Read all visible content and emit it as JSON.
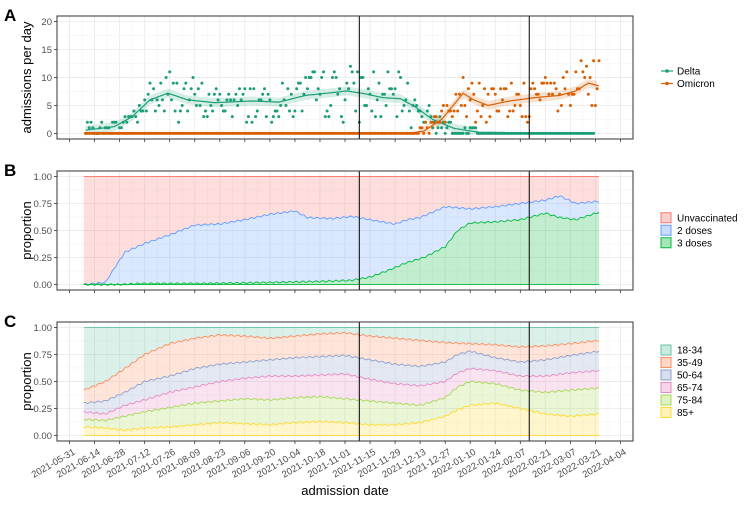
{
  "figure": {
    "xlabel": "admission date",
    "x_ticks": [
      "2021-05-31",
      "2021-06-14",
      "2021-06-28",
      "2021-07-12",
      "2021-07-26",
      "2021-08-09",
      "2021-08-23",
      "2021-09-06",
      "2021-09-20",
      "2021-10-04",
      "2021-10-18",
      "2021-11-01",
      "2021-11-15",
      "2021-11-29",
      "2021-12-13",
      "2021-12-27",
      "2022-01-10",
      "2022-01-24",
      "2022-02-07",
      "2022-02-21",
      "2022-03-07",
      "2022-03-21",
      "2022-04-04"
    ],
    "x_range": [
      "2021-05-24",
      "2022-04-11"
    ],
    "vlines": [
      "2021-11-09",
      "2022-02-12"
    ]
  },
  "panels": [
    {
      "tag": "A",
      "ylabel": "admissions per day"
    },
    {
      "tag": "B",
      "ylabel": "proportion"
    },
    {
      "tag": "C",
      "ylabel": "proportion"
    }
  ],
  "chart_data": [
    {
      "type": "scatter",
      "tag": "A",
      "ylabel": "admissions per day",
      "ylim": [
        -1,
        21
      ],
      "y_ticks": [
        0,
        5,
        10,
        15,
        20
      ],
      "legend_position": "right",
      "series": [
        {
          "name": "Delta",
          "color": "#1b9e77",
          "date_range": [
            "2021-06-09",
            "2022-03-20"
          ],
          "smooth": [
            [
              "2021-06-09",
              0.6
            ],
            [
              "2021-06-25",
              1.2
            ],
            [
              "2021-07-05",
              3.0
            ],
            [
              "2021-07-15",
              6.0
            ],
            [
              "2021-07-25",
              7.2
            ],
            [
              "2021-08-05",
              6.0
            ],
            [
              "2021-08-20",
              5.5
            ],
            [
              "2021-09-10",
              5.8
            ],
            [
              "2021-09-25",
              5.6
            ],
            [
              "2021-10-10",
              6.8
            ],
            [
              "2021-10-25",
              7.3
            ],
            [
              "2021-11-02",
              7.6
            ],
            [
              "2021-11-12",
              7.1
            ],
            [
              "2021-11-22",
              6.4
            ],
            [
              "2021-12-02",
              6.2
            ],
            [
              "2021-12-10",
              4.8
            ],
            [
              "2021-12-20",
              2.5
            ],
            [
              "2022-01-01",
              0.9
            ],
            [
              "2022-01-15",
              0.2
            ],
            [
              "2022-03-20",
              0.0
            ]
          ]
        },
        {
          "name": "Omicron",
          "color": "#d95f02",
          "date_range": [
            "2021-06-09",
            "2022-03-23"
          ],
          "smooth": [
            [
              "2021-06-09",
              0.0
            ],
            [
              "2021-12-05",
              0.0
            ],
            [
              "2021-12-15",
              0.4
            ],
            [
              "2021-12-25",
              2.5
            ],
            [
              "2022-01-01",
              5.2
            ],
            [
              "2022-01-06",
              7.2
            ],
            [
              "2022-01-12",
              6.0
            ],
            [
              "2022-01-20",
              5.0
            ],
            [
              "2022-02-01",
              5.8
            ],
            [
              "2022-02-15",
              6.4
            ],
            [
              "2022-03-01",
              6.8
            ],
            [
              "2022-03-10",
              7.6
            ],
            [
              "2022-03-17",
              9.0
            ],
            [
              "2022-03-23",
              8.5
            ]
          ]
        }
      ]
    },
    {
      "type": "area",
      "tag": "B",
      "ylabel": "proportion",
      "ylim": [
        -0.05,
        1.05
      ],
      "y_ticks": [
        "0.00",
        "0.25",
        "0.50",
        "0.75",
        "1.00"
      ],
      "legend_position": "right",
      "date_range": [
        "2021-06-08",
        "2022-03-23"
      ],
      "series": [
        {
          "name": "Unvaccinated",
          "color": "#f8766d",
          "upper": [
            [
              "2021-06-08",
              1.0
            ],
            [
              "2022-03-23",
              1.0
            ]
          ]
        },
        {
          "name": "2 doses",
          "color": "#619cff",
          "upper": [
            [
              "2021-06-08",
              0.0
            ],
            [
              "2021-06-20",
              0.02
            ],
            [
              "2021-06-25",
              0.15
            ],
            [
              "2021-07-01",
              0.3
            ],
            [
              "2021-07-12",
              0.38
            ],
            [
              "2021-07-26",
              0.46
            ],
            [
              "2021-08-09",
              0.55
            ],
            [
              "2021-08-23",
              0.56
            ],
            [
              "2021-09-06",
              0.6
            ],
            [
              "2021-09-20",
              0.65
            ],
            [
              "2021-10-04",
              0.68
            ],
            [
              "2021-10-11",
              0.62
            ],
            [
              "2021-10-25",
              0.61
            ],
            [
              "2021-11-05",
              0.63
            ],
            [
              "2021-11-15",
              0.6
            ],
            [
              "2021-11-29",
              0.56
            ],
            [
              "2021-12-06",
              0.6
            ],
            [
              "2021-12-13",
              0.62
            ],
            [
              "2021-12-20",
              0.67
            ],
            [
              "2021-12-27",
              0.72
            ],
            [
              "2022-01-10",
              0.7
            ],
            [
              "2022-01-24",
              0.72
            ],
            [
              "2022-02-07",
              0.75
            ],
            [
              "2022-02-21",
              0.78
            ],
            [
              "2022-03-01",
              0.82
            ],
            [
              "2022-03-10",
              0.75
            ],
            [
              "2022-03-23",
              0.77
            ]
          ]
        },
        {
          "name": "3 doses",
          "color": "#00ba38",
          "upper": [
            [
              "2021-06-08",
              0.0
            ],
            [
              "2021-06-28",
              0.0
            ],
            [
              "2021-07-10",
              0.01
            ],
            [
              "2021-08-15",
              0.01
            ],
            [
              "2021-09-20",
              0.02
            ],
            [
              "2021-10-20",
              0.03
            ],
            [
              "2021-11-05",
              0.04
            ],
            [
              "2021-11-15",
              0.07
            ],
            [
              "2021-11-25",
              0.13
            ],
            [
              "2021-12-05",
              0.2
            ],
            [
              "2021-12-15",
              0.25
            ],
            [
              "2021-12-27",
              0.35
            ],
            [
              "2022-01-03",
              0.5
            ],
            [
              "2022-01-10",
              0.57
            ],
            [
              "2022-01-24",
              0.58
            ],
            [
              "2022-02-07",
              0.6
            ],
            [
              "2022-02-21",
              0.66
            ],
            [
              "2022-03-01",
              0.62
            ],
            [
              "2022-03-10",
              0.6
            ],
            [
              "2022-03-23",
              0.67
            ]
          ]
        }
      ]
    },
    {
      "type": "area",
      "tag": "C",
      "ylabel": "proportion",
      "ylim": [
        -0.05,
        1.05
      ],
      "y_ticks": [
        "0.00",
        "0.25",
        "0.50",
        "0.75",
        "1.00"
      ],
      "legend_position": "right",
      "date_range": [
        "2021-06-08",
        "2022-03-23"
      ],
      "series": [
        {
          "name": "18-34",
          "color": "#66c2a5",
          "upper": [
            [
              "2021-06-08",
              1.0
            ],
            [
              "2022-03-23",
              1.0
            ]
          ]
        },
        {
          "name": "35-49",
          "color": "#fc8d62",
          "upper": [
            [
              "2021-06-08",
              0.42
            ],
            [
              "2021-06-20",
              0.5
            ],
            [
              "2021-07-01",
              0.62
            ],
            [
              "2021-07-12",
              0.75
            ],
            [
              "2021-07-26",
              0.85
            ],
            [
              "2021-08-09",
              0.9
            ],
            [
              "2021-08-23",
              0.93
            ],
            [
              "2021-09-06",
              0.92
            ],
            [
              "2021-09-20",
              0.9
            ],
            [
              "2021-10-04",
              0.92
            ],
            [
              "2021-10-18",
              0.94
            ],
            [
              "2021-11-01",
              0.95
            ],
            [
              "2021-11-15",
              0.92
            ],
            [
              "2021-11-29",
              0.9
            ],
            [
              "2021-12-13",
              0.88
            ],
            [
              "2021-12-27",
              0.86
            ],
            [
              "2022-01-10",
              0.85
            ],
            [
              "2022-01-24",
              0.84
            ],
            [
              "2022-02-07",
              0.82
            ],
            [
              "2022-02-21",
              0.83
            ],
            [
              "2022-03-07",
              0.85
            ],
            [
              "2022-03-23",
              0.88
            ]
          ]
        },
        {
          "name": "50-64",
          "color": "#8da0cb",
          "upper": [
            [
              "2021-06-08",
              0.3
            ],
            [
              "2021-06-20",
              0.32
            ],
            [
              "2021-07-01",
              0.4
            ],
            [
              "2021-07-12",
              0.5
            ],
            [
              "2021-07-26",
              0.55
            ],
            [
              "2021-08-09",
              0.62
            ],
            [
              "2021-08-23",
              0.66
            ],
            [
              "2021-09-06",
              0.68
            ],
            [
              "2021-09-20",
              0.7
            ],
            [
              "2021-10-04",
              0.72
            ],
            [
              "2021-10-18",
              0.73
            ],
            [
              "2021-11-01",
              0.74
            ],
            [
              "2021-11-15",
              0.7
            ],
            [
              "2021-11-29",
              0.66
            ],
            [
              "2021-12-13",
              0.64
            ],
            [
              "2021-12-27",
              0.68
            ],
            [
              "2022-01-03",
              0.75
            ],
            [
              "2022-01-10",
              0.78
            ],
            [
              "2022-01-24",
              0.72
            ],
            [
              "2022-02-07",
              0.68
            ],
            [
              "2022-02-21",
              0.7
            ],
            [
              "2022-03-07",
              0.74
            ],
            [
              "2022-03-23",
              0.78
            ]
          ]
        },
        {
          "name": "65-74",
          "color": "#e78ac3",
          "upper": [
            [
              "2021-06-08",
              0.22
            ],
            [
              "2021-06-20",
              0.2
            ],
            [
              "2021-07-01",
              0.28
            ],
            [
              "2021-07-12",
              0.33
            ],
            [
              "2021-07-26",
              0.4
            ],
            [
              "2021-08-09",
              0.45
            ],
            [
              "2021-08-23",
              0.5
            ],
            [
              "2021-09-06",
              0.53
            ],
            [
              "2021-09-20",
              0.55
            ],
            [
              "2021-10-04",
              0.55
            ],
            [
              "2021-10-18",
              0.56
            ],
            [
              "2021-11-01",
              0.57
            ],
            [
              "2021-11-15",
              0.52
            ],
            [
              "2021-11-29",
              0.48
            ],
            [
              "2021-12-13",
              0.46
            ],
            [
              "2021-12-27",
              0.5
            ],
            [
              "2022-01-03",
              0.58
            ],
            [
              "2022-01-10",
              0.62
            ],
            [
              "2022-01-24",
              0.6
            ],
            [
              "2022-02-07",
              0.55
            ],
            [
              "2022-02-21",
              0.55
            ],
            [
              "2022-03-07",
              0.58
            ],
            [
              "2022-03-23",
              0.6
            ]
          ]
        },
        {
          "name": "75-84",
          "color": "#a6d854",
          "upper": [
            [
              "2021-06-08",
              0.15
            ],
            [
              "2021-06-20",
              0.14
            ],
            [
              "2021-07-01",
              0.18
            ],
            [
              "2021-07-12",
              0.22
            ],
            [
              "2021-07-26",
              0.26
            ],
            [
              "2021-08-09",
              0.3
            ],
            [
              "2021-08-23",
              0.32
            ],
            [
              "2021-09-06",
              0.34
            ],
            [
              "2021-09-20",
              0.33
            ],
            [
              "2021-10-04",
              0.35
            ],
            [
              "2021-10-18",
              0.36
            ],
            [
              "2021-11-01",
              0.34
            ],
            [
              "2021-11-15",
              0.32
            ],
            [
              "2021-11-29",
              0.3
            ],
            [
              "2021-12-13",
              0.28
            ],
            [
              "2021-12-27",
              0.35
            ],
            [
              "2022-01-03",
              0.45
            ],
            [
              "2022-01-10",
              0.5
            ],
            [
              "2022-01-24",
              0.48
            ],
            [
              "2022-02-07",
              0.42
            ],
            [
              "2022-02-21",
              0.4
            ],
            [
              "2022-03-07",
              0.42
            ],
            [
              "2022-03-23",
              0.44
            ]
          ]
        },
        {
          "name": "85+",
          "color": "#ffd92f",
          "upper": [
            [
              "2021-06-08",
              0.08
            ],
            [
              "2021-06-20",
              0.07
            ],
            [
              "2021-07-01",
              0.05
            ],
            [
              "2021-07-12",
              0.07
            ],
            [
              "2021-07-26",
              0.08
            ],
            [
              "2021-08-09",
              0.1
            ],
            [
              "2021-08-23",
              0.12
            ],
            [
              "2021-09-06",
              0.11
            ],
            [
              "2021-09-20",
              0.1
            ],
            [
              "2021-10-04",
              0.12
            ],
            [
              "2021-10-18",
              0.13
            ],
            [
              "2021-11-01",
              0.12
            ],
            [
              "2021-11-15",
              0.1
            ],
            [
              "2021-11-29",
              0.1
            ],
            [
              "2021-12-13",
              0.12
            ],
            [
              "2021-12-27",
              0.18
            ],
            [
              "2022-01-03",
              0.24
            ],
            [
              "2022-01-10",
              0.28
            ],
            [
              "2022-01-24",
              0.3
            ],
            [
              "2022-02-07",
              0.25
            ],
            [
              "2022-02-21",
              0.2
            ],
            [
              "2022-03-07",
              0.18
            ],
            [
              "2022-03-23",
              0.2
            ]
          ]
        }
      ]
    }
  ]
}
